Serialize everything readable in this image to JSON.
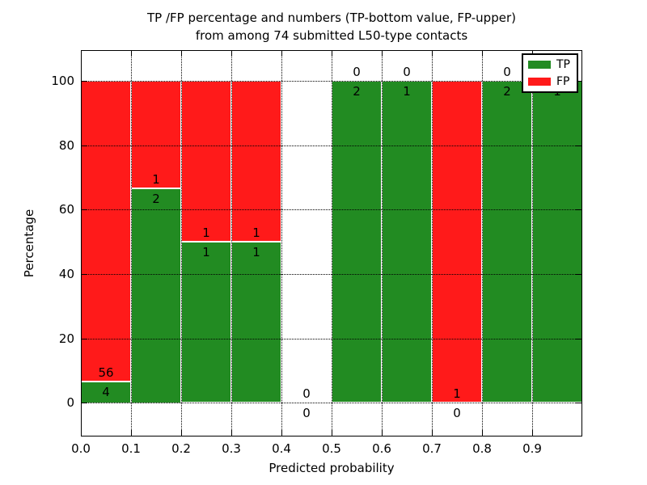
{
  "title": {
    "line1": "TP /FP percentage and numbers (TP-bottom value, FP-upper)",
    "line2": "from among 74 submitted L50-type contacts"
  },
  "chart_data": {
    "type": "bar",
    "subtype": "stacked-percentage-histogram",
    "title": "TP /FP percentage and numbers (TP-bottom value, FP-upper)\nfrom among 74 submitted L50-type contacts",
    "xlabel": "Predicted probability",
    "ylabel": "Percentage",
    "xlim": [
      0.0,
      1.0
    ],
    "ylim": [
      -10.5,
      109.5
    ],
    "grid": "dotted",
    "x_ticks": [
      "0.0",
      "0.1",
      "0.2",
      "0.3",
      "0.4",
      "0.5",
      "0.6",
      "0.7",
      "0.8",
      "0.9"
    ],
    "y_ticks": [
      "0",
      "20",
      "40",
      "60",
      "80",
      "100"
    ],
    "legend": {
      "position": "upper right",
      "entries": [
        {
          "label": "TP",
          "color": "#228B22"
        },
        {
          "label": "FP",
          "color": "#FF1A1A"
        }
      ]
    },
    "bins": [
      {
        "range": [
          0.0,
          0.1
        ],
        "tp": 4,
        "fp": 56,
        "tp_pct": 6.67
      },
      {
        "range": [
          0.1,
          0.2
        ],
        "tp": 2,
        "fp": 1,
        "tp_pct": 66.67
      },
      {
        "range": [
          0.2,
          0.3
        ],
        "tp": 1,
        "fp": 1,
        "tp_pct": 50
      },
      {
        "range": [
          0.3,
          0.4
        ],
        "tp": 1,
        "fp": 1,
        "tp_pct": 50
      },
      {
        "range": [
          0.4,
          0.5
        ],
        "tp": 0,
        "fp": 0,
        "tp_pct": null
      },
      {
        "range": [
          0.5,
          0.6
        ],
        "tp": 2,
        "fp": 0,
        "tp_pct": 100
      },
      {
        "range": [
          0.6,
          0.7
        ],
        "tp": 1,
        "fp": 0,
        "tp_pct": 100
      },
      {
        "range": [
          0.7,
          0.8
        ],
        "tp": 0,
        "fp": 1,
        "tp_pct": 0
      },
      {
        "range": [
          0.8,
          0.9
        ],
        "tp": 2,
        "fp": 0,
        "tp_pct": 100
      },
      {
        "range": [
          0.9,
          1.0
        ],
        "tp": 1,
        "fp": 0,
        "tp_pct": 100
      }
    ],
    "colors": {
      "tp": "#228B22",
      "fp": "#FF1A1A",
      "bar_edge": "#FFFFFF",
      "grid": "#000000",
      "background": "#FFFFFF"
    }
  }
}
